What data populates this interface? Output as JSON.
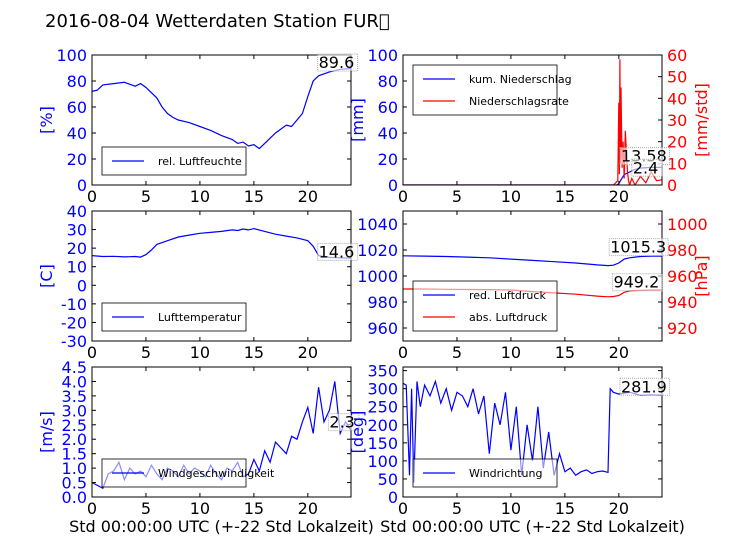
{
  "title": "2016-08-04 Wetterdaten Station FUR\u0000",
  "chart_data": [
    {
      "id": "humidity",
      "type": "line",
      "xlim": [
        0,
        24
      ],
      "ylim": [
        0,
        100
      ],
      "xticks": [
        0,
        5,
        10,
        15,
        20
      ],
      "yticks": [
        0,
        20,
        40,
        60,
        80,
        100
      ],
      "ylabel": "[%]",
      "ylabel_color": "#0000ff",
      "series": [
        {
          "name": "rel. Luftfeuchte",
          "color": "#0000ff",
          "x": [
            0,
            0.5,
            1,
            2,
            3,
            4,
            4.5,
            5,
            6,
            6.5,
            7,
            7.5,
            8,
            9,
            10,
            11,
            12,
            13,
            13.5,
            14,
            14.5,
            15,
            15.5,
            16,
            16.5,
            17,
            18,
            18.5,
            19,
            19.5,
            20,
            20.5,
            21,
            22,
            23,
            24
          ],
          "y": [
            72,
            73,
            77,
            78,
            79,
            76,
            78,
            75,
            67,
            60,
            55,
            52,
            50,
            48,
            45,
            42,
            38,
            35,
            32,
            33,
            30,
            31,
            28,
            32,
            36,
            40,
            46,
            45,
            50,
            55,
            68,
            80,
            84,
            87,
            89,
            89.6
          ]
        }
      ],
      "legend": {
        "position": "lower-center"
      },
      "annotations": [
        {
          "text": "89.6",
          "x": 21,
          "y": 90
        }
      ]
    },
    {
      "id": "precip",
      "type": "line",
      "xlim": [
        0,
        24
      ],
      "ylim": [
        0,
        100
      ],
      "y2lim": [
        0,
        60
      ],
      "xticks": [
        0,
        5,
        10,
        15,
        20
      ],
      "yticks": [
        0,
        20,
        40,
        60,
        80,
        100
      ],
      "y2ticks": [
        0,
        10,
        20,
        30,
        40,
        50,
        60
      ],
      "ylabel": "[mm]",
      "ylabel_color": "#0000ff",
      "y2label": "[mm/std]",
      "y2label_color": "#ff0000",
      "series": [
        {
          "name": "kum. Niederschlag",
          "color": "#0000ff",
          "axis": "left",
          "x": [
            0,
            19.8,
            20,
            20.2,
            20.5,
            21,
            21.5,
            22,
            23,
            24
          ],
          "y": [
            0,
            0,
            1,
            4,
            8,
            10,
            12,
            13,
            13.5,
            13.58
          ]
        },
        {
          "name": "Niederschlagsrate",
          "color": "#ff0000",
          "axis": "right",
          "x": [
            0,
            19.5,
            19.9,
            20,
            20.05,
            20.1,
            20.15,
            20.2,
            20.3,
            20.4,
            20.5,
            20.6,
            20.8,
            20.9,
            21,
            21.2,
            21.5,
            22,
            22.5,
            23,
            23.5,
            24
          ],
          "y": [
            0,
            0,
            2,
            38,
            5,
            58,
            10,
            45,
            8,
            20,
            3,
            25,
            6,
            2,
            0,
            3,
            0,
            4,
            1,
            6,
            2,
            2.4
          ]
        }
      ],
      "legend": {
        "position": "upper-left"
      },
      "annotations": [
        {
          "text": "13.58",
          "x": 20.2,
          "y": 18
        },
        {
          "text": "2.4",
          "x": 21.3,
          "y": 9
        }
      ]
    },
    {
      "id": "temperature",
      "type": "line",
      "xlim": [
        0,
        24
      ],
      "ylim": [
        -30,
        40
      ],
      "xticks": [
        0,
        5,
        10,
        15,
        20
      ],
      "yticks": [
        -30,
        -20,
        -10,
        0,
        10,
        20,
        30,
        40
      ],
      "ylabel": "[C]",
      "ylabel_color": "#0000ff",
      "series": [
        {
          "name": "Lufttemperatur",
          "color": "#0000ff",
          "x": [
            0,
            1,
            2,
            3,
            4,
            4.5,
            5,
            5.5,
            6,
            7,
            8,
            9,
            10,
            11,
            12,
            13,
            13.5,
            14,
            14.5,
            15,
            16,
            17,
            18,
            19,
            20,
            20.5,
            21,
            22,
            23,
            24
          ],
          "y": [
            16,
            15.5,
            15.6,
            15.3,
            15.5,
            15.2,
            16.5,
            19,
            22,
            24,
            26,
            27,
            28,
            28.5,
            29,
            29.8,
            29.5,
            30.3,
            29.8,
            30.5,
            29,
            27.5,
            26.5,
            25.5,
            24,
            21,
            16,
            15,
            14.8,
            14.6
          ]
        }
      ],
      "legend": {
        "position": "lower-center"
      },
      "annotations": [
        {
          "text": "14.6",
          "x": 21,
          "y": 15
        }
      ]
    },
    {
      "id": "pressure",
      "type": "line",
      "xlim": [
        0,
        24
      ],
      "ylim": [
        950,
        1050
      ],
      "y2lim": [
        910,
        1010
      ],
      "xticks": [
        0,
        5,
        10,
        15,
        20
      ],
      "yticks": [
        960,
        980,
        1000,
        1020,
        1040
      ],
      "y2ticks": [
        920,
        940,
        960,
        980,
        1000
      ],
      "ylabel": "",
      "y2label": "[hPa]",
      "y2label_color": "#ff0000",
      "series": [
        {
          "name": "red. Luftdruck",
          "color": "#0000ff",
          "axis": "left",
          "x": [
            0,
            2,
            4,
            6,
            8,
            10,
            12,
            14,
            16,
            18,
            19,
            19.5,
            20,
            20.5,
            21,
            22,
            23,
            24
          ],
          "y": [
            1015.5,
            1015.3,
            1015,
            1014.5,
            1014,
            1013,
            1012,
            1011,
            1010,
            1008.5,
            1008,
            1008.3,
            1010,
            1013,
            1014,
            1015,
            1015.2,
            1015.3
          ]
        },
        {
          "name": "abs. Luftdruck",
          "color": "#ff0000",
          "axis": "right",
          "x": [
            0,
            2,
            4,
            6,
            8,
            10,
            12,
            14,
            16,
            18,
            19,
            19.5,
            20,
            20.5,
            21,
            22,
            23,
            24
          ],
          "y": [
            950,
            950,
            949.8,
            949.6,
            949.5,
            949.2,
            948,
            947,
            946,
            944.5,
            944,
            944.2,
            945,
            947.5,
            948.5,
            949,
            949.2,
            949.2
          ]
        }
      ],
      "legend": {
        "position": "lower-left"
      },
      "annotations": [
        {
          "text": "1015.3",
          "x": 19.2,
          "y": 1018
        },
        {
          "text": "949.2",
          "x": 19.5,
          "y": 991
        }
      ]
    },
    {
      "id": "windspeed",
      "type": "line",
      "xlim": [
        0,
        24
      ],
      "ylim": [
        0,
        4.5
      ],
      "xticks": [
        0,
        5,
        10,
        15,
        20
      ],
      "yticks": [
        0.0,
        0.5,
        1.0,
        1.5,
        2.0,
        2.5,
        3.0,
        3.5,
        4.0,
        4.5
      ],
      "ytick_labels": [
        "0.0",
        "0.5",
        "1.0",
        "1.5",
        "2.0",
        "2.5",
        "3.0",
        "3.5",
        "4.0",
        "4.5"
      ],
      "xlabel": "Std 00:00:00 UTC (+-22 Std Lokalzeit)",
      "ylabel": "[m/s]",
      "ylabel_color": "#0000ff",
      "series": [
        {
          "name": "Windgeschwindigkeit",
          "color": "#0000ff",
          "x": [
            0,
            0.5,
            1,
            1.5,
            2,
            2.5,
            3,
            3.5,
            4,
            4.5,
            5,
            5.5,
            6,
            6.5,
            7,
            7.5,
            8,
            8.5,
            9,
            9.5,
            10,
            10.5,
            11,
            11.5,
            12,
            12.5,
            13,
            13.5,
            14,
            14.5,
            15,
            15.5,
            16,
            16.5,
            17,
            17.5,
            18,
            18.5,
            19,
            19.5,
            20,
            20.5,
            21,
            21.5,
            22,
            22.5,
            23,
            23.5,
            24
          ],
          "y": [
            0.5,
            0.4,
            0.3,
            0.8,
            0.9,
            1.2,
            0.6,
            1.0,
            0.8,
            0.9,
            0.7,
            1.1,
            0.8,
            0.6,
            1.0,
            0.9,
            0.7,
            1.1,
            0.8,
            1.0,
            0.9,
            0.7,
            1.1,
            0.8,
            0.6,
            1.0,
            0.9,
            1.2,
            0.7,
            0.8,
            1.3,
            0.9,
            1.6,
            1.2,
            1.9,
            1.7,
            1.5,
            2.1,
            2.0,
            2.6,
            3.1,
            2.2,
            3.8,
            2.6,
            3.0,
            4.0,
            2.2,
            2.6,
            2.3
          ]
        }
      ],
      "legend": {
        "position": "lower-left"
      },
      "annotations": [
        {
          "text": "2.3",
          "x": 22,
          "y": 2.4
        }
      ]
    },
    {
      "id": "winddir",
      "type": "line",
      "xlim": [
        0,
        24
      ],
      "ylim": [
        0,
        360
      ],
      "xticks": [
        0,
        5,
        10,
        15,
        20
      ],
      "yticks": [
        0,
        50,
        100,
        150,
        200,
        250,
        300,
        350
      ],
      "xlabel": "Std 00:00:00 UTC (+-22 Std Lokalzeit)",
      "ylabel": "[deg]",
      "ylabel_color": "#0000ff",
      "series": [
        {
          "name": "Windrichtung",
          "color": "#0000ff",
          "x": [
            0,
            0.3,
            0.6,
            0.8,
            1,
            1.3,
            1.6,
            2,
            2.5,
            3,
            3.5,
            4,
            4.5,
            5,
            5.5,
            6,
            6.5,
            7,
            7.5,
            8,
            8.5,
            9,
            9.5,
            10,
            10.5,
            11,
            11.5,
            12,
            12.5,
            13,
            13.5,
            14,
            14.5,
            15,
            15.5,
            16,
            16.5,
            17,
            17.5,
            18,
            18.5,
            19,
            19.2,
            19.5,
            20,
            21,
            22,
            23,
            24
          ],
          "y": [
            315,
            310,
            60,
            300,
            40,
            320,
            250,
            310,
            280,
            320,
            260,
            300,
            240,
            290,
            280,
            250,
            300,
            230,
            280,
            120,
            260,
            200,
            290,
            130,
            250,
            60,
            200,
            100,
            250,
            80,
            180,
            60,
            120,
            70,
            80,
            60,
            70,
            75,
            65,
            70,
            72,
            68,
            300,
            290,
            285,
            290,
            282,
            283,
            281.9
          ]
        }
      ],
      "legend": {
        "position": "lower-left"
      },
      "annotations": [
        {
          "text": "281.9",
          "x": 20.2,
          "y": 290
        }
      ]
    }
  ]
}
